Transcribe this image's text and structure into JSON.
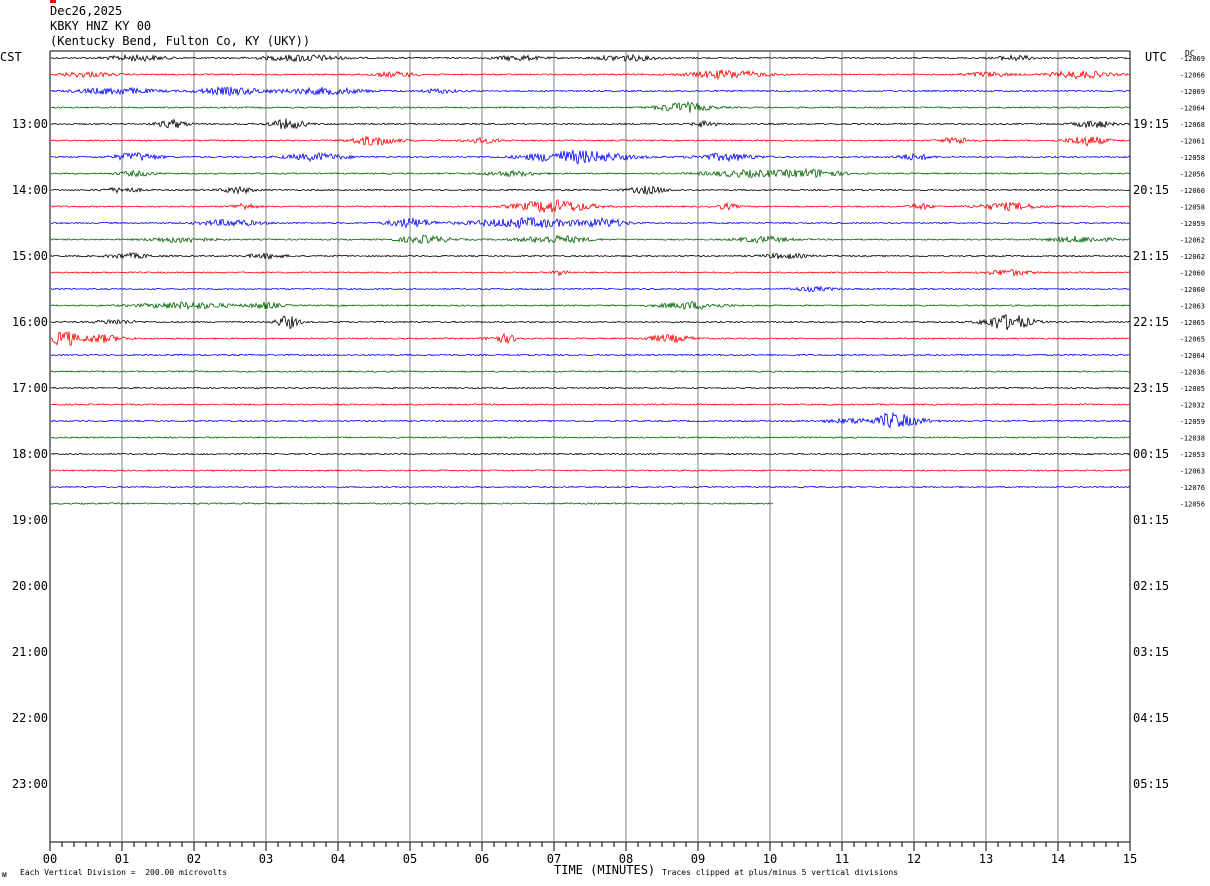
{
  "header": {
    "date": "Dec26,2025",
    "station": "KBKY HNZ KY 00",
    "location": "(Kentucky Bend, Fulton Co, KY (UKY))"
  },
  "labels": {
    "left_tz": "CST",
    "right_tz": "UTC",
    "dc": "DC",
    "xlabel": "TIME (MINUTES)",
    "scale_note": "Each Vertical Division =  200.00 microvolts",
    "clip_note": "Traces clipped at plus/minus 5 vertical divisions"
  },
  "colors": {
    "traces": [
      "#000000",
      "#ff0000",
      "#0000ff",
      "#006400"
    ],
    "gridline": "#808080"
  },
  "chart_data": {
    "type": "line",
    "title": "KBKY HNZ KY 00",
    "xlabel": "TIME (MINUTES)",
    "xlim": [
      0,
      15
    ],
    "x_ticks": [
      "00",
      "01",
      "02",
      "03",
      "04",
      "05",
      "06",
      "07",
      "08",
      "09",
      "10",
      "11",
      "12",
      "13",
      "14",
      "15"
    ],
    "left_hour_labels": [
      "13:00",
      "14:00",
      "15:00",
      "16:00",
      "17:00",
      "18:00",
      "19:00",
      "20:00",
      "21:00",
      "22:00",
      "23:00"
    ],
    "right_hour_labels": [
      "19:15",
      "20:15",
      "21:15",
      "22:15",
      "23:15",
      "00:15",
      "01:15",
      "02:15",
      "03:15",
      "04:15",
      "05:15"
    ],
    "rows_total": 48,
    "traces": [
      {
        "row": 0,
        "dc": "-12069",
        "end": 15,
        "events": [
          [
            1.2,
            0.8,
            0.35
          ],
          [
            3.5,
            1.0,
            0.4
          ],
          [
            6.5,
            0.6,
            0.3
          ],
          [
            8.0,
            0.8,
            0.35
          ],
          [
            13.4,
            0.5,
            0.3
          ]
        ]
      },
      {
        "row": 1,
        "dc": "-12066",
        "end": 15,
        "events": [
          [
            0.5,
            0.7,
            0.3
          ],
          [
            4.8,
            0.6,
            0.3
          ],
          [
            9.4,
            1.0,
            0.5
          ],
          [
            13.0,
            0.6,
            0.3
          ],
          [
            14.3,
            0.8,
            0.45
          ]
        ]
      },
      {
        "row": 2,
        "dc": "-12069",
        "end": 15,
        "events": [
          [
            0.9,
            1.0,
            0.4
          ],
          [
            2.5,
            0.9,
            0.45
          ],
          [
            3.8,
            1.1,
            0.4
          ],
          [
            5.4,
            0.5,
            0.25
          ]
        ]
      },
      {
        "row": 3,
        "dc": "-12064",
        "end": 15,
        "events": [
          [
            8.8,
            0.7,
            0.6
          ]
        ]
      },
      {
        "row": 4,
        "dc": "-12068",
        "end": 15,
        "events": [
          [
            1.7,
            0.4,
            0.5
          ],
          [
            3.3,
            0.5,
            0.6
          ],
          [
            9.1,
            0.3,
            0.4
          ],
          [
            14.5,
            0.5,
            0.45
          ]
        ]
      },
      {
        "row": 5,
        "dc": "-12061",
        "end": 15,
        "events": [
          [
            4.5,
            0.6,
            0.6
          ],
          [
            6.0,
            0.5,
            0.3
          ],
          [
            12.6,
            0.4,
            0.4
          ],
          [
            14.4,
            0.5,
            0.6
          ]
        ]
      },
      {
        "row": 6,
        "dc": "-12058",
        "end": 15,
        "events": [
          [
            1.2,
            0.6,
            0.5
          ],
          [
            3.7,
            0.8,
            0.45
          ],
          [
            7.3,
            1.3,
            0.8
          ],
          [
            9.4,
            0.8,
            0.45
          ],
          [
            12.0,
            0.5,
            0.35
          ]
        ]
      },
      {
        "row": 7,
        "dc": "-12056",
        "end": 15,
        "events": [
          [
            1.2,
            0.5,
            0.3
          ],
          [
            6.4,
            0.7,
            0.3
          ],
          [
            9.7,
            1.2,
            0.4
          ],
          [
            10.6,
            0.8,
            0.45
          ]
        ]
      },
      {
        "row": 8,
        "dc": "-12060",
        "end": 15,
        "events": [
          [
            1.0,
            0.5,
            0.3
          ],
          [
            2.6,
            0.4,
            0.4
          ],
          [
            8.3,
            0.5,
            0.45
          ]
        ]
      },
      {
        "row": 9,
        "dc": "-12058",
        "end": 15,
        "events": [
          [
            2.7,
            0.3,
            0.4
          ],
          [
            7.0,
            1.0,
            0.8
          ],
          [
            9.4,
            0.3,
            0.35
          ],
          [
            12.1,
            0.3,
            0.35
          ],
          [
            13.3,
            0.8,
            0.45
          ]
        ]
      },
      {
        "row": 10,
        "dc": "-12059",
        "end": 15,
        "events": [
          [
            2.5,
            0.8,
            0.4
          ],
          [
            5.0,
            0.6,
            0.55
          ],
          [
            6.6,
            1.4,
            0.6
          ],
          [
            7.7,
            0.6,
            0.5
          ]
        ]
      },
      {
        "row": 11,
        "dc": "-12062",
        "end": 15,
        "events": [
          [
            1.8,
            0.8,
            0.35
          ],
          [
            5.2,
            0.7,
            0.45
          ],
          [
            7.0,
            0.9,
            0.45
          ],
          [
            9.9,
            0.7,
            0.35
          ],
          [
            14.3,
            0.8,
            0.35
          ]
        ]
      },
      {
        "row": 12,
        "dc": "-12062",
        "end": 15,
        "events": [
          [
            1.1,
            0.6,
            0.3
          ],
          [
            3.0,
            0.5,
            0.3
          ],
          [
            10.2,
            0.6,
            0.3
          ]
        ]
      },
      {
        "row": 13,
        "dc": "-12060",
        "end": 15,
        "events": [
          [
            7.1,
            0.2,
            0.4
          ],
          [
            13.3,
            0.6,
            0.35
          ]
        ]
      },
      {
        "row": 14,
        "dc": "-12060",
        "end": 15,
        "events": [
          [
            10.6,
            0.6,
            0.25
          ]
        ]
      },
      {
        "row": 15,
        "dc": "-12063",
        "end": 15,
        "events": [
          [
            1.9,
            1.2,
            0.4
          ],
          [
            3.0,
            0.4,
            0.4
          ],
          [
            8.9,
            0.8,
            0.45
          ]
        ]
      },
      {
        "row": 16,
        "dc": "-12065",
        "end": 15,
        "events": [
          [
            0.9,
            0.5,
            0.3
          ],
          [
            3.3,
            0.3,
            0.8
          ],
          [
            13.3,
            0.6,
            1.1
          ]
        ]
      },
      {
        "row": 17,
        "dc": "-12065",
        "end": 15,
        "events": [
          [
            0.2,
            0.3,
            1.1
          ],
          [
            0.7,
            0.6,
            0.5
          ],
          [
            6.3,
            0.4,
            0.5
          ],
          [
            8.6,
            0.6,
            0.45
          ]
        ]
      },
      {
        "row": 18,
        "dc": "-12064",
        "end": 15,
        "events": []
      },
      {
        "row": 19,
        "dc": "-12036",
        "end": 15,
        "events": []
      },
      {
        "row": 20,
        "dc": "-12005",
        "end": 15,
        "events": []
      },
      {
        "row": 21,
        "dc": "-12032",
        "end": 15,
        "events": []
      },
      {
        "row": 22,
        "dc": "-12059",
        "end": 15,
        "events": [
          [
            11.2,
            0.8,
            0.3
          ],
          [
            11.7,
            0.25,
            1.6
          ],
          [
            11.9,
            0.6,
            0.5
          ]
        ]
      },
      {
        "row": 23,
        "dc": "-12038",
        "end": 15,
        "events": []
      },
      {
        "row": 24,
        "dc": "-12053",
        "end": 15,
        "events": []
      },
      {
        "row": 25,
        "dc": "-12063",
        "end": 15,
        "events": []
      },
      {
        "row": 26,
        "dc": "-12076",
        "end": 15,
        "events": []
      },
      {
        "row": 27,
        "dc": "-12056",
        "end": 10.05,
        "events": []
      }
    ]
  }
}
